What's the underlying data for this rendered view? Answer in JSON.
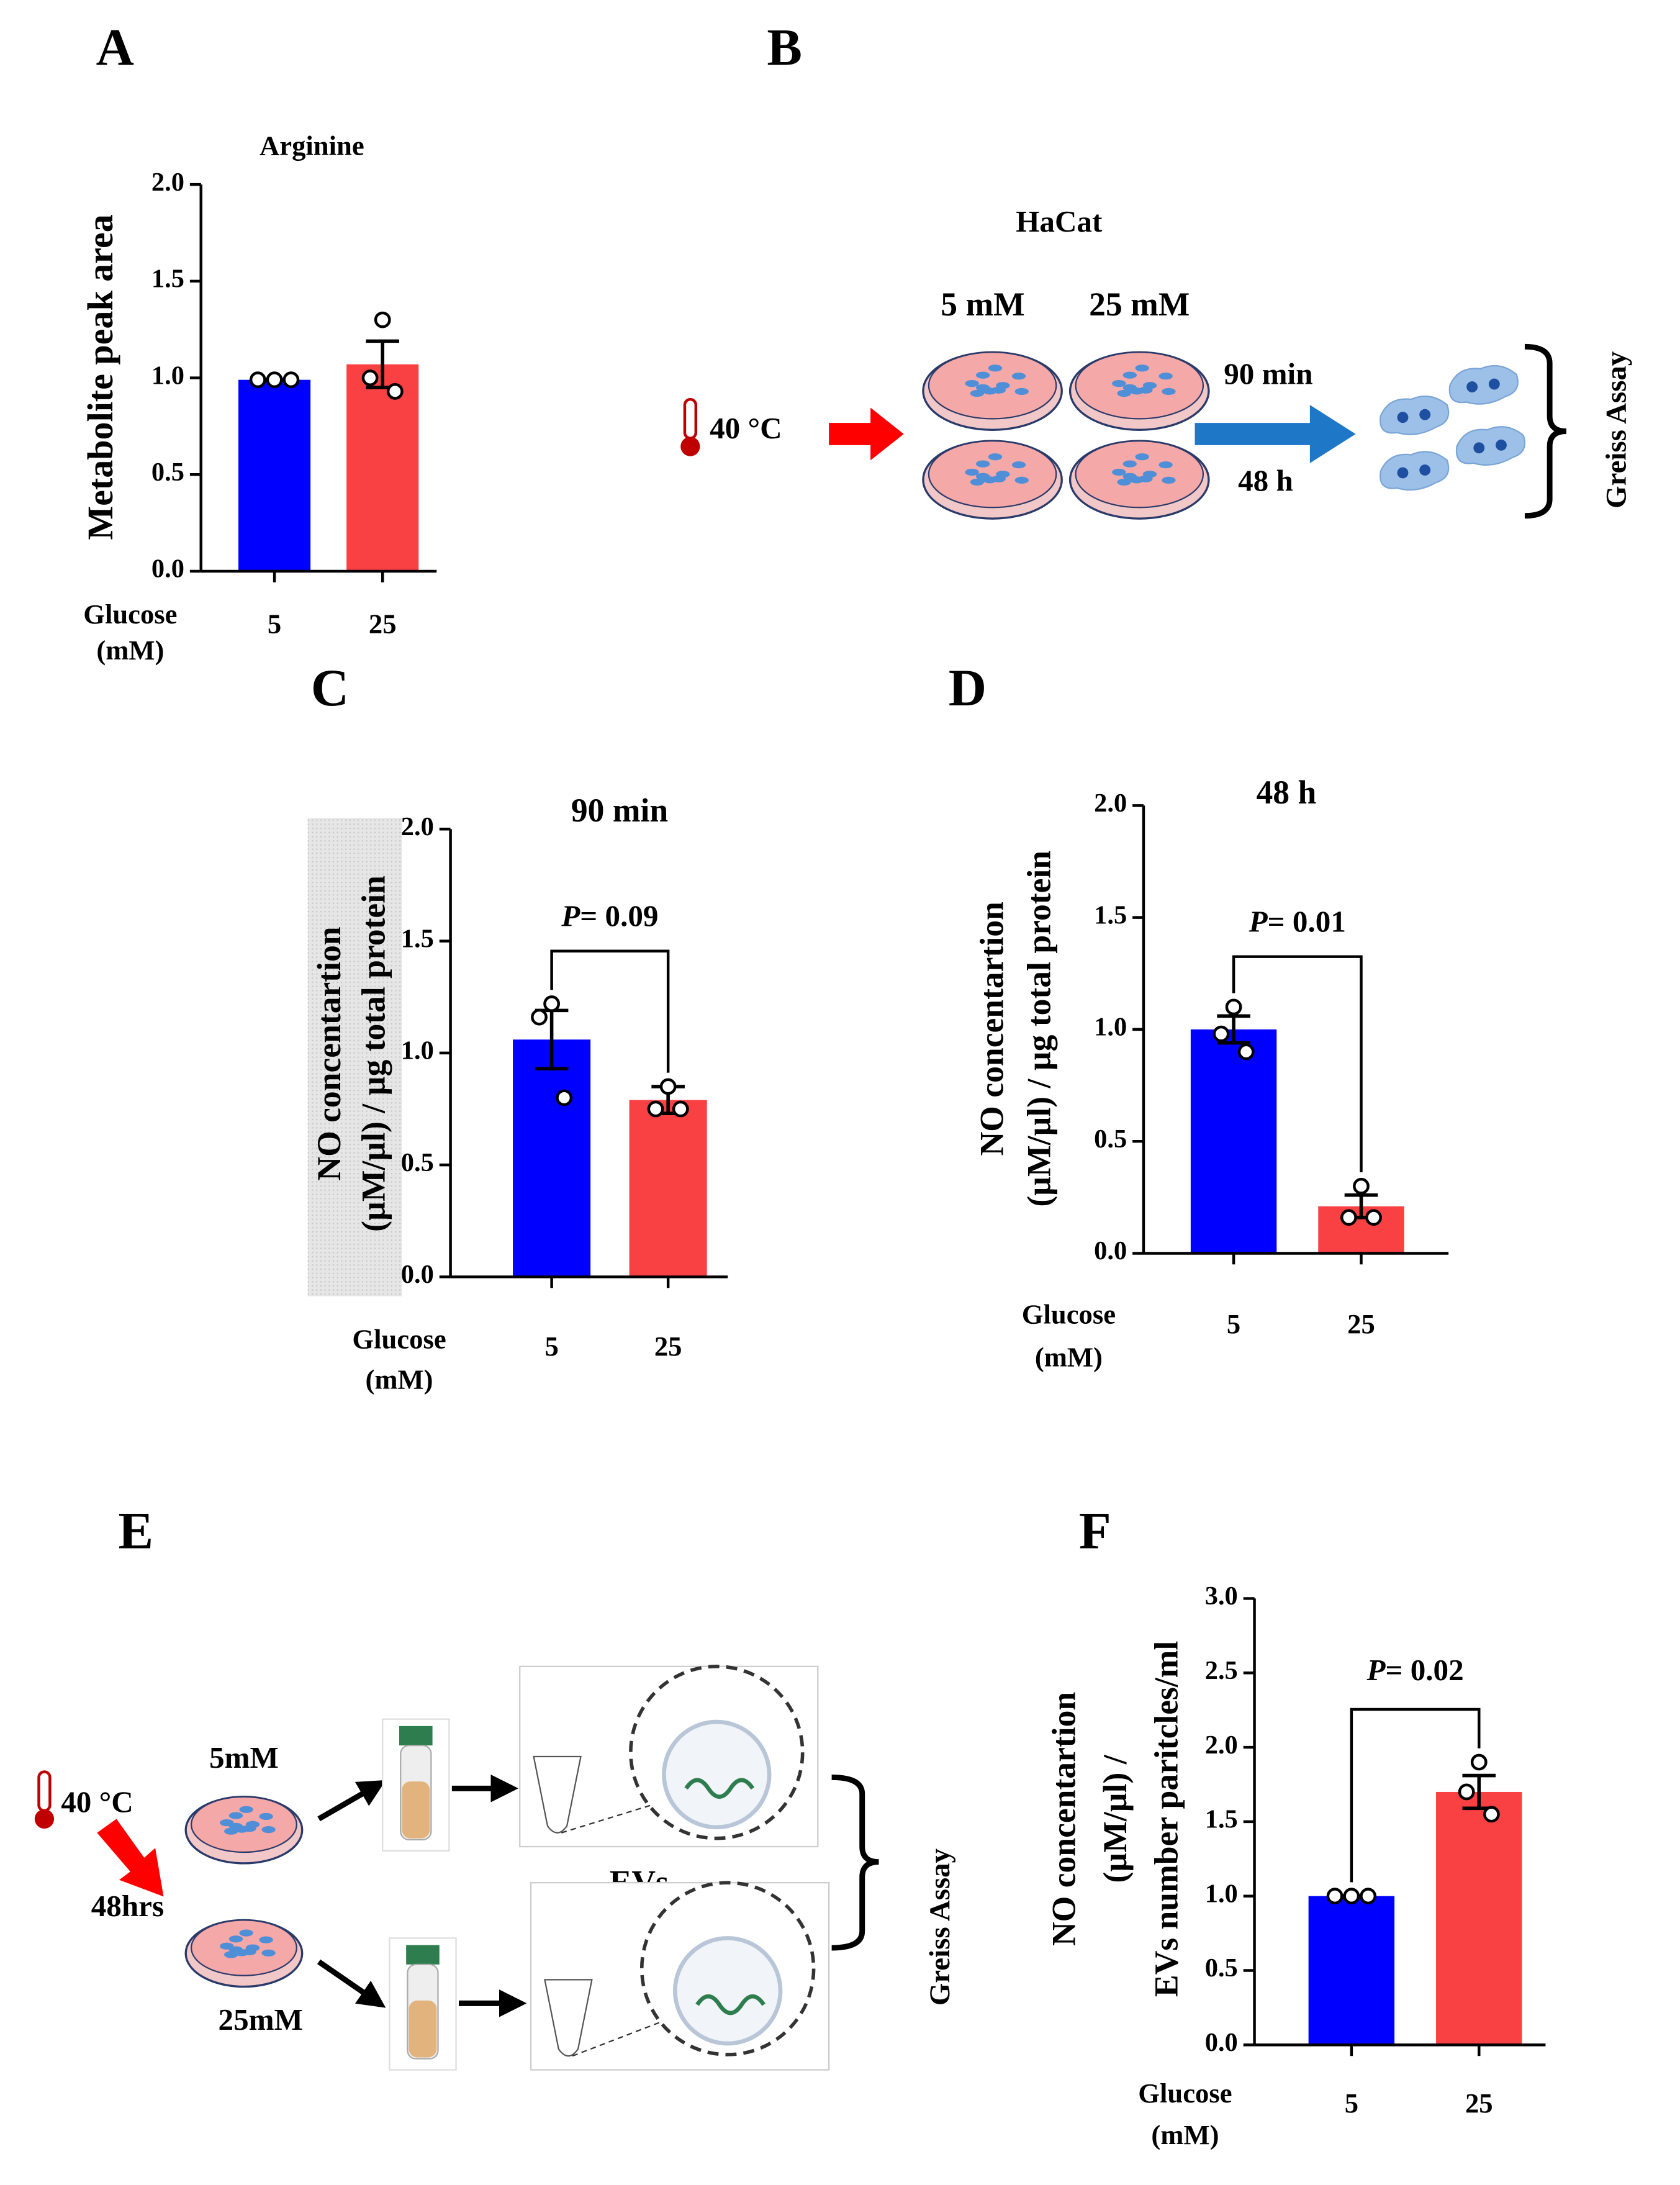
{
  "chart_data": [
    {
      "panel": "A",
      "type": "bar",
      "title": "Arginine",
      "y_label": [
        "Metabolite peak area"
      ],
      "x_label": [
        "Glucose",
        "(mM)"
      ],
      "categories": [
        "5",
        "25"
      ],
      "values": [
        0.99,
        1.07
      ],
      "errors": [
        0,
        0.12
      ],
      "points": [
        [
          0.99,
          0.99,
          0.99
        ],
        [
          1.3,
          1.0,
          0.93
        ]
      ],
      "colors": [
        "#0000ff",
        "#f94144"
      ],
      "ylim": [
        0,
        2
      ],
      "yticks": [
        {
          "value": 0,
          "label": "0.0"
        },
        {
          "value": 0.5,
          "label": "0.5"
        },
        {
          "value": 1,
          "label": "1.0"
        },
        {
          "value": 1.5,
          "label": "1.5"
        },
        {
          "value": 2,
          "label": "2.0"
        }
      ]
    },
    {
      "panel": "C",
      "type": "bar",
      "title": "90 min",
      "y_label": [
        "NO concentartion",
        "(µM/µl) / µg total protein"
      ],
      "x_label": [
        "Glucose",
        "(mM)"
      ],
      "categories": [
        "5",
        "25"
      ],
      "values": [
        1.06,
        0.79
      ],
      "errors": [
        0.13,
        0.06
      ],
      "points": [
        [
          1.22,
          1.16,
          0.8
        ],
        [
          0.85,
          0.75,
          0.75
        ]
      ],
      "colors": [
        "#0000ff",
        "#f94144"
      ],
      "p_value": {
        "symbol": "P",
        "text": "= 0.09"
      },
      "ylim": [
        0,
        2
      ],
      "yticks": [
        {
          "value": 0,
          "label": "0.0"
        },
        {
          "value": 0.5,
          "label": "0.5"
        },
        {
          "value": 1,
          "label": "1.0"
        },
        {
          "value": 1.5,
          "label": "1.5"
        },
        {
          "value": 2,
          "label": "2.0"
        }
      ]
    },
    {
      "panel": "D",
      "type": "bar",
      "title": "48 h",
      "y_label": [
        "NO concentartion",
        "(µM/µl) / µg total protein"
      ],
      "x_label": [
        "Glucose",
        "(mM)"
      ],
      "categories": [
        "5",
        "25"
      ],
      "values": [
        1.0,
        0.21
      ],
      "errors": [
        0.06,
        0.05
      ],
      "points": [
        [
          1.1,
          0.98,
          0.9
        ],
        [
          0.3,
          0.16,
          0.16
        ]
      ],
      "colors": [
        "#0000ff",
        "#f94144"
      ],
      "p_value": {
        "symbol": "P",
        "text": "= 0.01"
      },
      "ylim": [
        0,
        2
      ],
      "yticks": [
        {
          "value": 0,
          "label": "0.0"
        },
        {
          "value": 0.5,
          "label": "0.5"
        },
        {
          "value": 1,
          "label": "1.0"
        },
        {
          "value": 1.5,
          "label": "1.5"
        },
        {
          "value": 2,
          "label": "2.0"
        }
      ]
    },
    {
      "panel": "F",
      "type": "bar",
      "y_label": [
        "NO concentartion",
        "(µM/µl) /",
        "EVs number paritcles/ml"
      ],
      "x_label": [
        "Glucose",
        "(mM)"
      ],
      "categories": [
        "5",
        "25"
      ],
      "values": [
        1.0,
        1.7
      ],
      "errors": [
        0,
        0.11
      ],
      "points": [
        [
          1.0,
          1.0,
          1.0
        ],
        [
          1.9,
          1.7,
          1.55
        ]
      ],
      "colors": [
        "#0000ff",
        "#f94144"
      ],
      "p_value": {
        "symbol": "P",
        "text": "= 0.02"
      },
      "ylim": [
        0,
        3
      ],
      "yticks": [
        {
          "value": 0,
          "label": "0.0"
        },
        {
          "value": 0.5,
          "label": "0.5"
        },
        {
          "value": 1,
          "label": "1.0"
        },
        {
          "value": 1.5,
          "label": "1.5"
        },
        {
          "value": 2,
          "label": "2.0"
        },
        {
          "value": 2.5,
          "label": "2.5"
        },
        {
          "value": 3,
          "label": "3.0"
        }
      ]
    }
  ],
  "diagram_b": {
    "panel": "B",
    "cell_line": "HaCat",
    "temperature": "40 °C",
    "conditions": [
      "5 mM",
      "25 mM"
    ],
    "times": [
      "90 min",
      "48 h"
    ],
    "assay": "Greiss Assay"
  },
  "diagram_e": {
    "panel": "E",
    "temperature": "40 °C",
    "duration": "48hrs",
    "conditions": [
      "5mM",
      "25mM"
    ],
    "product": "EVs",
    "assay": "Greiss Assay"
  }
}
